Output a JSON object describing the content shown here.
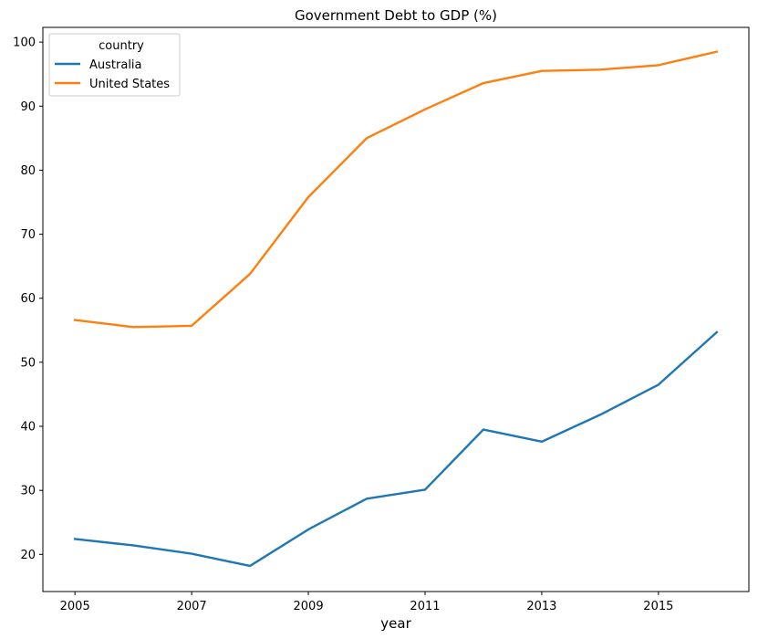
{
  "chart_data": {
    "type": "line",
    "title": "Government Debt to GDP (%)",
    "xlabel": "year",
    "ylabel": "",
    "x": [
      2005,
      2006,
      2007,
      2008,
      2009,
      2010,
      2011,
      2012,
      2013,
      2014,
      2015,
      2016
    ],
    "xlim": [
      2004.45,
      2016.55
    ],
    "ylim": [
      14.2,
      102.3
    ],
    "xticks": [
      "2005",
      "2007",
      "2009",
      "2011",
      "2013",
      "2015"
    ],
    "yticks": [
      "20",
      "30",
      "40",
      "50",
      "60",
      "70",
      "80",
      "90",
      "100"
    ],
    "grid": false,
    "legend": {
      "title": "country",
      "placement": "top-left"
    },
    "series": [
      {
        "name": "Australia",
        "color": "#1f77b4",
        "values": [
          22.4,
          21.4,
          20.1,
          18.2,
          23.9,
          28.7,
          30.1,
          39.5,
          37.6,
          41.8,
          46.5,
          54.7
        ]
      },
      {
        "name": "United States",
        "color": "#ff7f0e",
        "values": [
          56.6,
          55.5,
          55.7,
          63.8,
          75.8,
          85.0,
          89.5,
          93.6,
          95.5,
          95.7,
          96.4,
          98.5
        ]
      }
    ]
  }
}
